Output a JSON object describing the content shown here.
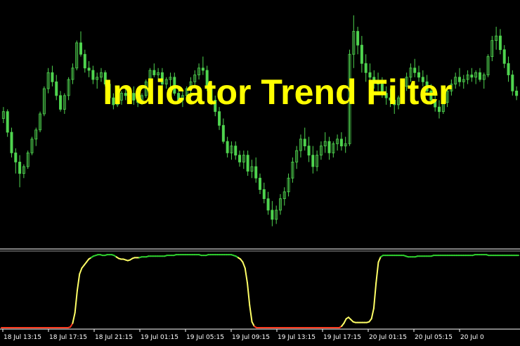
{
  "chart_data": {
    "type": "candlestick-with-oscillator",
    "title": "Indicator Trend Filter",
    "colors": {
      "background": "#000000",
      "candle": "#4fd44f",
      "title": "#ffff00",
      "separator": "#ffffff",
      "filter_low": "#ff3b1f",
      "filter_mid": "#ffff66",
      "filter_high": "#2fd02f"
    },
    "price_panel": {
      "ylim": [
        0,
        100
      ],
      "candles": [
        [
          52,
          57,
          50,
          55
        ],
        [
          55,
          56,
          44,
          46
        ],
        [
          46,
          48,
          35,
          37
        ],
        [
          37,
          39,
          28,
          33
        ],
        [
          33,
          36,
          22,
          28
        ],
        [
          28,
          32,
          26,
          31
        ],
        [
          31,
          38,
          30,
          37
        ],
        [
          37,
          44,
          36,
          43
        ],
        [
          43,
          48,
          40,
          47
        ],
        [
          47,
          55,
          46,
          54
        ],
        [
          54,
          66,
          53,
          65
        ],
        [
          65,
          74,
          63,
          72
        ],
        [
          72,
          75,
          66,
          68
        ],
        [
          68,
          71,
          60,
          62
        ],
        [
          62,
          64,
          55,
          56
        ],
        [
          56,
          63,
          54,
          62
        ],
        [
          62,
          70,
          60,
          69
        ],
        [
          69,
          76,
          67,
          74
        ],
        [
          74,
          86,
          73,
          85
        ],
        [
          85,
          90,
          79,
          80
        ],
        [
          80,
          82,
          72,
          74
        ],
        [
          74,
          77,
          70,
          73
        ],
        [
          73,
          75,
          67,
          69
        ],
        [
          69,
          72,
          65,
          70
        ],
        [
          70,
          74,
          68,
          72
        ],
        [
          72,
          73,
          66,
          67
        ],
        [
          67,
          68,
          60,
          61
        ],
        [
          61,
          63,
          56,
          58
        ],
        [
          58,
          62,
          57,
          60
        ],
        [
          60,
          64,
          58,
          63
        ],
        [
          63,
          66,
          60,
          62
        ],
        [
          62,
          64,
          61,
          63
        ],
        [
          63,
          66,
          58,
          60
        ],
        [
          60,
          62,
          57,
          59
        ],
        [
          59,
          63,
          58,
          62
        ],
        [
          62,
          69,
          61,
          68
        ],
        [
          68,
          74,
          67,
          73
        ],
        [
          73,
          76,
          70,
          71
        ],
        [
          71,
          74,
          68,
          72
        ],
        [
          72,
          74,
          66,
          67
        ],
        [
          67,
          70,
          65,
          69
        ],
        [
          69,
          72,
          66,
          70
        ],
        [
          70,
          72,
          62,
          63
        ],
        [
          63,
          65,
          59,
          60
        ],
        [
          60,
          64,
          57,
          62
        ],
        [
          62,
          66,
          60,
          65
        ],
        [
          65,
          70,
          63,
          68
        ],
        [
          68,
          73,
          66,
          71
        ],
        [
          71,
          76,
          69,
          74
        ],
        [
          74,
          79,
          71,
          73
        ],
        [
          73,
          75,
          64,
          66
        ],
        [
          66,
          68,
          58,
          60
        ],
        [
          60,
          62,
          53,
          55
        ],
        [
          55,
          57,
          47,
          49
        ],
        [
          49,
          52,
          41,
          42
        ],
        [
          42,
          44,
          35,
          37
        ],
        [
          37,
          42,
          34,
          40
        ],
        [
          40,
          42,
          34,
          36
        ],
        [
          36,
          38,
          31,
          33
        ],
        [
          33,
          38,
          30,
          36
        ],
        [
          36,
          38,
          27,
          29
        ],
        [
          29,
          34,
          26,
          31
        ],
        [
          31,
          35,
          24,
          26
        ],
        [
          26,
          28,
          19,
          21
        ],
        [
          21,
          24,
          15,
          17
        ],
        [
          17,
          20,
          10,
          12
        ],
        [
          12,
          16,
          5,
          8
        ],
        [
          8,
          14,
          6,
          12
        ],
        [
          12,
          19,
          10,
          17
        ],
        [
          17,
          22,
          14,
          20
        ],
        [
          20,
          28,
          18,
          26
        ],
        [
          26,
          35,
          24,
          33
        ],
        [
          33,
          40,
          30,
          38
        ],
        [
          38,
          45,
          35,
          43
        ],
        [
          43,
          48,
          38,
          40
        ],
        [
          40,
          44,
          33,
          36
        ],
        [
          36,
          40,
          28,
          31
        ],
        [
          31,
          38,
          29,
          36
        ],
        [
          36,
          42,
          34,
          40
        ],
        [
          40,
          46,
          37,
          42
        ],
        [
          42,
          44,
          34,
          37
        ],
        [
          37,
          42,
          35,
          41
        ],
        [
          41,
          45,
          38,
          43
        ],
        [
          43,
          46,
          38,
          40
        ],
        [
          40,
          44,
          37,
          41
        ],
        [
          41,
          82,
          40,
          80
        ],
        [
          80,
          97,
          74,
          90
        ],
        [
          90,
          92,
          80,
          84
        ],
        [
          84,
          88,
          72,
          76
        ],
        [
          76,
          80,
          68,
          72
        ],
        [
          72,
          76,
          66,
          70
        ],
        [
          70,
          73,
          65,
          68
        ],
        [
          68,
          72,
          64,
          67
        ],
        [
          67,
          70,
          61,
          63
        ],
        [
          63,
          66,
          58,
          61
        ],
        [
          61,
          65,
          57,
          60
        ],
        [
          60,
          64,
          54,
          58
        ],
        [
          58,
          62,
          56,
          61
        ],
        [
          61,
          68,
          60,
          66
        ],
        [
          66,
          72,
          64,
          70
        ],
        [
          70,
          76,
          68,
          74
        ],
        [
          74,
          78,
          70,
          72
        ],
        [
          72,
          75,
          68,
          70
        ],
        [
          70,
          73,
          66,
          68
        ],
        [
          68,
          71,
          62,
          64
        ],
        [
          64,
          67,
          58,
          60
        ],
        [
          60,
          63,
          55,
          57
        ],
        [
          57,
          60,
          52,
          55
        ],
        [
          55,
          60,
          54,
          59
        ],
        [
          59,
          65,
          57,
          64
        ],
        [
          64,
          69,
          62,
          67
        ],
        [
          67,
          72,
          65,
          70
        ],
        [
          70,
          74,
          66,
          68
        ],
        [
          68,
          71,
          65,
          69
        ],
        [
          69,
          73,
          67,
          71
        ],
        [
          71,
          74,
          68,
          70
        ],
        [
          70,
          73,
          67,
          72
        ],
        [
          72,
          74,
          68,
          69
        ],
        [
          69,
          72,
          65,
          71
        ],
        [
          71,
          80,
          70,
          79
        ],
        [
          79,
          88,
          77,
          86
        ],
        [
          86,
          92,
          82,
          88
        ],
        [
          88,
          91,
          80,
          82
        ],
        [
          82,
          84,
          74,
          76
        ],
        [
          76,
          79,
          68,
          71
        ],
        [
          71,
          73,
          62,
          64
        ],
        [
          64,
          66,
          60,
          62
        ]
      ]
    },
    "filter_panel": {
      "ylim": [
        0,
        100
      ],
      "values": [
        0,
        0,
        0,
        0,
        0,
        0,
        0,
        0,
        0,
        0,
        0,
        0,
        0,
        0,
        0,
        0,
        0,
        0,
        0,
        0,
        0,
        0,
        0,
        0,
        0,
        0,
        0,
        0,
        0,
        0,
        1,
        6,
        20,
        50,
        72,
        80,
        84,
        88,
        92,
        94,
        96,
        97,
        98,
        98,
        97,
        97,
        98,
        98,
        98,
        97,
        95,
        93,
        92,
        92,
        91,
        90,
        91,
        93,
        94,
        94,
        94,
        95,
        95,
        95,
        96,
        96,
        96,
        96,
        96,
        96,
        96,
        96,
        97,
        97,
        97,
        97,
        98,
        98,
        98,
        98,
        98,
        98,
        98,
        98,
        98,
        98,
        98,
        97,
        97,
        97,
        98,
        98,
        98,
        98,
        98,
        98,
        98,
        98,
        98,
        98,
        98,
        97,
        96,
        94,
        92,
        88,
        80,
        60,
        30,
        8,
        2,
        0,
        0,
        0,
        0,
        0,
        0,
        0,
        0,
        0,
        0,
        0,
        0,
        0,
        0,
        0,
        0,
        0,
        0,
        0,
        0,
        0,
        0,
        0,
        0,
        0,
        0,
        0,
        0,
        0,
        0,
        0,
        0,
        0,
        0,
        0,
        0,
        0,
        2,
        6,
        12,
        14,
        11,
        8,
        7,
        7,
        7,
        7,
        7,
        7,
        8,
        12,
        26,
        60,
        88,
        95,
        97,
        97,
        97,
        97,
        97,
        97,
        97,
        97,
        97,
        97,
        96,
        95,
        95,
        95,
        95,
        96,
        96,
        96,
        96,
        96,
        96,
        96,
        97,
        97,
        97,
        97,
        97,
        97,
        97,
        97,
        97,
        97,
        97,
        97,
        97,
        97,
        97,
        97,
        97,
        97,
        98,
        98,
        98,
        98,
        98,
        98,
        97,
        97,
        97,
        97,
        97,
        97,
        97,
        97,
        97,
        97,
        97,
        97,
        97,
        97
      ]
    },
    "x_ticks": [
      "18 Jul 13:15",
      "18 Jul 17:15",
      "18 Jul 21:15",
      "19 Jul 01:15",
      "19 Jul 05:15",
      "19 Jul 09:15",
      "19 Jul 13:15",
      "19 Jul 17:15",
      "20 Jul 01:15",
      "20 Jul 05:15",
      "20 Jul 0"
    ],
    "grid": false
  }
}
